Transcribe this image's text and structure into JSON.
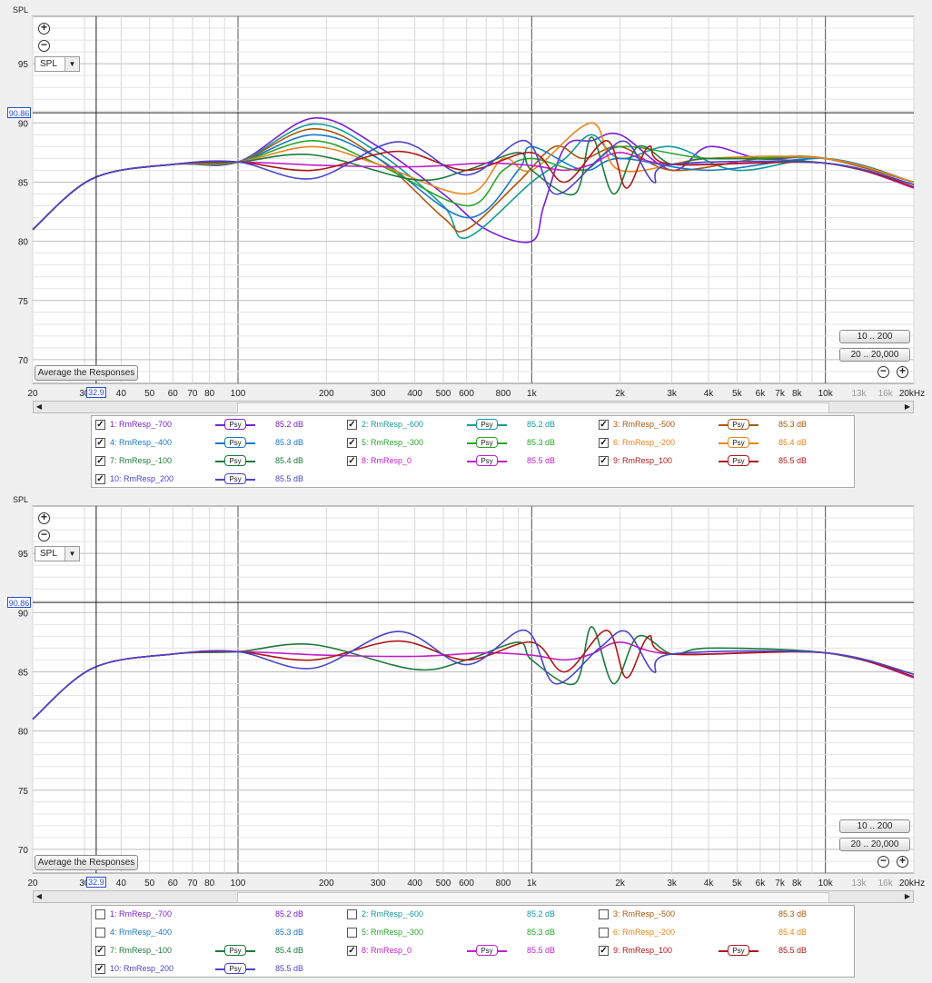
{
  "panels": [
    {
      "id": "top",
      "spl_label": "SPL",
      "view_select": "SPL",
      "cursor_y": "90.86",
      "cursor_x": "32.9",
      "average_button": "Average the Responses",
      "range_buttons": [
        "10 .. 200",
        "20 .. 20,000"
      ],
      "visible_series": [
        0,
        1,
        2,
        3,
        4,
        5,
        6,
        7,
        8,
        9
      ]
    },
    {
      "id": "bottom",
      "spl_label": "SPL",
      "view_select": "SPL",
      "cursor_y": "90.86",
      "cursor_x": "32.9",
      "average_button": "Average the Responses",
      "range_buttons": [
        "10 .. 200",
        "20 .. 20,000"
      ],
      "visible_series": [
        6,
        7,
        8,
        9
      ]
    }
  ],
  "axis": {
    "y_ticks": [
      "95",
      "90",
      "85",
      "80",
      "75",
      "70"
    ],
    "x_ticks": [
      "20",
      "30",
      "40",
      "50",
      "60",
      "70",
      "80",
      "100",
      "200",
      "300",
      "400",
      "500",
      "600",
      "800",
      "1k",
      "2k",
      "3k",
      "4k",
      "5k",
      "6k",
      "7k",
      "8k",
      "10k",
      "13k",
      "16k",
      "20kHz"
    ],
    "y_range": [
      68,
      99
    ],
    "x_range": [
      20,
      20000
    ]
  },
  "series": [
    {
      "label": "1: RmResp_-700",
      "color": "#7b1fd6",
      "db": "85.2 dB",
      "psy": "Psy"
    },
    {
      "label": "2: RmResp_-600",
      "color": "#139a9a",
      "db": "85.2 dB",
      "psy": "Psy"
    },
    {
      "label": "3: RmResp_-500",
      "color": "#a8580e",
      "db": "85.3 dB",
      "psy": "Psy"
    },
    {
      "label": "4: RmResp_-400",
      "color": "#1778c9",
      "db": "85.3 dB",
      "psy": "Psy"
    },
    {
      "label": "5: RmResp_-300",
      "color": "#2aa52a",
      "db": "85.3 dB",
      "psy": "Psy"
    },
    {
      "label": "6: RmResp_-200",
      "color": "#e8861c",
      "db": "85.4 dB",
      "psy": "Psy"
    },
    {
      "label": "7: RmResp_-100",
      "color": "#1c7a3a",
      "db": "85.4 dB",
      "psy": "Psy"
    },
    {
      "label": "8: RmResp_0",
      "color": "#c020c8",
      "db": "85.5 dB",
      "psy": "Psy"
    },
    {
      "label": "9: RmResp_100",
      "color": "#b01818",
      "db": "85.5 dB",
      "psy": "Psy"
    },
    {
      "label": "10: RmResp_200",
      "color": "#4b45c8",
      "db": "85.5 dB",
      "psy": "Psy"
    }
  ],
  "chart_data": {
    "type": "line",
    "xlabel": "",
    "ylabel": "SPL",
    "x_scale": "log",
    "xlim": [
      20,
      20000
    ],
    "ylim": [
      68,
      99
    ],
    "grid": true,
    "series": [
      {
        "name": "1: RmResp_-700",
        "points": [
          [
            20,
            81
          ],
          [
            32,
            85.3
          ],
          [
            60,
            86.5
          ],
          [
            100,
            86.7
          ],
          [
            180,
            90.4
          ],
          [
            300,
            88
          ],
          [
            500,
            84
          ],
          [
            700,
            81
          ],
          [
            1000,
            80
          ],
          [
            1100,
            83
          ],
          [
            1300,
            88
          ],
          [
            1600,
            88.5
          ],
          [
            2000,
            89
          ],
          [
            3000,
            86
          ],
          [
            4000,
            88
          ],
          [
            6000,
            87
          ],
          [
            10000,
            87
          ],
          [
            20000,
            85
          ]
        ]
      },
      {
        "name": "2: RmResp_-600",
        "points": [
          [
            20,
            81
          ],
          [
            32,
            85.3
          ],
          [
            60,
            86.5
          ],
          [
            100,
            86.7
          ],
          [
            180,
            89.9
          ],
          [
            300,
            87.5
          ],
          [
            500,
            83
          ],
          [
            600,
            80.3
          ],
          [
            1000,
            85
          ],
          [
            1300,
            87
          ],
          [
            1600,
            89
          ],
          [
            2000,
            87
          ],
          [
            3000,
            88
          ],
          [
            5000,
            86
          ],
          [
            10000,
            87
          ],
          [
            20000,
            85
          ]
        ]
      },
      {
        "name": "3: RmResp_-500",
        "points": [
          [
            20,
            81
          ],
          [
            32,
            85.3
          ],
          [
            60,
            86.5
          ],
          [
            100,
            86.7
          ],
          [
            180,
            89.5
          ],
          [
            300,
            87
          ],
          [
            500,
            82
          ],
          [
            600,
            81
          ],
          [
            900,
            85
          ],
          [
            1200,
            88
          ],
          [
            1500,
            87
          ],
          [
            2000,
            88
          ],
          [
            3000,
            86
          ],
          [
            6000,
            87
          ],
          [
            10000,
            87
          ],
          [
            20000,
            85
          ]
        ]
      },
      {
        "name": "4: RmResp_-400",
        "points": [
          [
            20,
            81
          ],
          [
            32,
            85.3
          ],
          [
            60,
            86.5
          ],
          [
            100,
            86.7
          ],
          [
            180,
            89
          ],
          [
            300,
            87
          ],
          [
            600,
            82
          ],
          [
            900,
            86
          ],
          [
            1000,
            88
          ],
          [
            1500,
            86
          ],
          [
            2000,
            87
          ],
          [
            4000,
            86
          ],
          [
            10000,
            87
          ],
          [
            20000,
            85
          ]
        ]
      },
      {
        "name": "5: RmResp_-300",
        "points": [
          [
            20,
            81
          ],
          [
            32,
            85.3
          ],
          [
            60,
            86.5
          ],
          [
            100,
            86.7
          ],
          [
            180,
            88.5
          ],
          [
            300,
            86.5
          ],
          [
            600,
            83
          ],
          [
            800,
            86
          ],
          [
            1000,
            87
          ],
          [
            1500,
            86
          ],
          [
            2000,
            88
          ],
          [
            4000,
            87
          ],
          [
            10000,
            87
          ],
          [
            20000,
            85
          ]
        ]
      },
      {
        "name": "6: RmResp_-200",
        "points": [
          [
            20,
            81
          ],
          [
            32,
            85.3
          ],
          [
            60,
            86.5
          ],
          [
            100,
            86.7
          ],
          [
            180,
            88
          ],
          [
            300,
            86.5
          ],
          [
            600,
            84
          ],
          [
            800,
            87
          ],
          [
            1000,
            86
          ],
          [
            1600,
            90
          ],
          [
            2000,
            86
          ],
          [
            4000,
            87
          ],
          [
            10000,
            87
          ],
          [
            20000,
            85
          ]
        ]
      },
      {
        "name": "7: RmResp_-100",
        "points": [
          [
            20,
            81
          ],
          [
            32,
            85.3
          ],
          [
            60,
            86.5
          ],
          [
            100,
            86.7
          ],
          [
            180,
            87.3
          ],
          [
            400,
            85.2
          ],
          [
            600,
            86
          ],
          [
            900,
            87.5
          ],
          [
            1000,
            86
          ],
          [
            1400,
            84
          ],
          [
            1600,
            88.8
          ],
          [
            1900,
            84
          ],
          [
            2300,
            88
          ],
          [
            3000,
            86.5
          ],
          [
            4000,
            87
          ],
          [
            10000,
            86.6
          ],
          [
            20000,
            84.8
          ]
        ]
      },
      {
        "name": "8: RmResp_0",
        "points": [
          [
            20,
            81
          ],
          [
            32,
            85.3
          ],
          [
            60,
            86.5
          ],
          [
            100,
            86.7
          ],
          [
            200,
            86.4
          ],
          [
            400,
            86.3
          ],
          [
            700,
            86.6
          ],
          [
            1000,
            86.4
          ],
          [
            1300,
            86
          ],
          [
            1600,
            86.5
          ],
          [
            2000,
            87.5
          ],
          [
            3000,
            86.5
          ],
          [
            10000,
            86.6
          ],
          [
            20000,
            84.5
          ]
        ]
      },
      {
        "name": "9: RmResp_100",
        "points": [
          [
            20,
            81
          ],
          [
            32,
            85.3
          ],
          [
            60,
            86.5
          ],
          [
            100,
            86.7
          ],
          [
            180,
            86
          ],
          [
            350,
            87.6
          ],
          [
            600,
            86
          ],
          [
            1000,
            87.5
          ],
          [
            1300,
            85
          ],
          [
            1800,
            88.5
          ],
          [
            2100,
            84.5
          ],
          [
            2500,
            88
          ],
          [
            3000,
            86.5
          ],
          [
            10000,
            86.6
          ],
          [
            20000,
            84.6
          ]
        ]
      },
      {
        "name": "10: RmResp_200",
        "points": [
          [
            20,
            81
          ],
          [
            32,
            85.3
          ],
          [
            60,
            86.5
          ],
          [
            100,
            86.7
          ],
          [
            180,
            85.3
          ],
          [
            350,
            88.4
          ],
          [
            600,
            85.6
          ],
          [
            950,
            88.5
          ],
          [
            1200,
            84
          ],
          [
            1700,
            87
          ],
          [
            2100,
            88.4
          ],
          [
            2600,
            85
          ],
          [
            3000,
            86.5
          ],
          [
            10000,
            86.6
          ],
          [
            20000,
            84.8
          ]
        ]
      }
    ]
  },
  "legends": [
    {
      "checked": [
        true,
        true,
        true,
        true,
        true,
        true,
        true,
        true,
        true,
        true
      ],
      "psy_shown": [
        true,
        true,
        true,
        true,
        true,
        true,
        true,
        true,
        true,
        true
      ]
    },
    {
      "checked": [
        false,
        false,
        false,
        false,
        false,
        false,
        true,
        true,
        true,
        true
      ],
      "psy_shown": [
        false,
        false,
        false,
        false,
        false,
        false,
        true,
        true,
        true,
        true
      ]
    }
  ]
}
